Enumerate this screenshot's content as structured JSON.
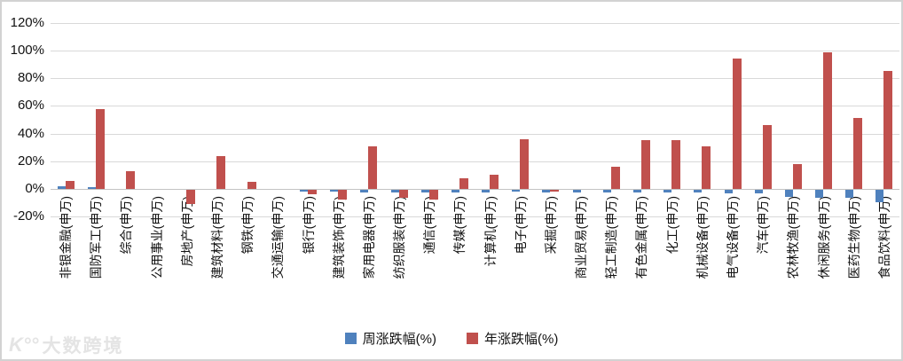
{
  "chart_data": {
    "type": "bar",
    "title": "",
    "xlabel": "",
    "ylabel": "",
    "categories": [
      "非银金融(申万)",
      "国防军工(申万)",
      "综合(申万)",
      "公用事业(申万)",
      "房地产(申万)",
      "建筑材料(申万)",
      "钢铁(申万)",
      "交通运输(申万)",
      "银行(申万)",
      "建筑装饰(申万)",
      "家用电器(申万)",
      "纺织服装(申万)",
      "通信(申万)",
      "传媒(申万)",
      "计算机(申万)",
      "电子(申万)",
      "采掘(申万)",
      "商业贸易(申万)",
      "轻工制造(申万)",
      "有色金属(申万)",
      "化工(申万)",
      "机械设备(申万)",
      "电气设备(申万)",
      "汽车(申万)",
      "农林牧渔(申万)",
      "休闲服务(申万)",
      "医药生物(申万)",
      "食品饮料(申万)"
    ],
    "series": [
      {
        "name": "周涨跌幅(%)",
        "color": "#4F81BD",
        "values": [
          2,
          1,
          0,
          0,
          0,
          0,
          0,
          0,
          -1,
          -1.5,
          -2,
          -2,
          -2,
          -2,
          -2,
          -1.5,
          -2,
          -2,
          -2,
          -2,
          -2,
          -2,
          -2.5,
          -2.5,
          -5,
          -5.5,
          -6,
          -9
        ]
      },
      {
        "name": "年涨跌幅(%)",
        "color": "#C0504D",
        "values": [
          6,
          58,
          13,
          0,
          -10,
          24,
          5,
          0,
          -3,
          -7,
          31,
          -6,
          -7,
          8,
          10,
          36,
          -1,
          0,
          16,
          35,
          35,
          31,
          94,
          46,
          18,
          99,
          51,
          85
        ]
      }
    ],
    "ylim": [
      -20,
      120
    ],
    "yticks": [
      "120%",
      "100%",
      "80%",
      "60%",
      "40%",
      "20%",
      "0%",
      "-20%"
    ],
    "ytick_values": [
      120,
      100,
      80,
      60,
      40,
      20,
      0,
      -20
    ],
    "grid": true,
    "legend_position": "bottom"
  },
  "watermark": {
    "icon": "K°°",
    "text": "大数跨境"
  },
  "colors": {
    "gridline": "#d9d9d9",
    "zero_axis": "#c3c3c3",
    "week_series": "#4F81BD",
    "year_series": "#C0504D"
  }
}
